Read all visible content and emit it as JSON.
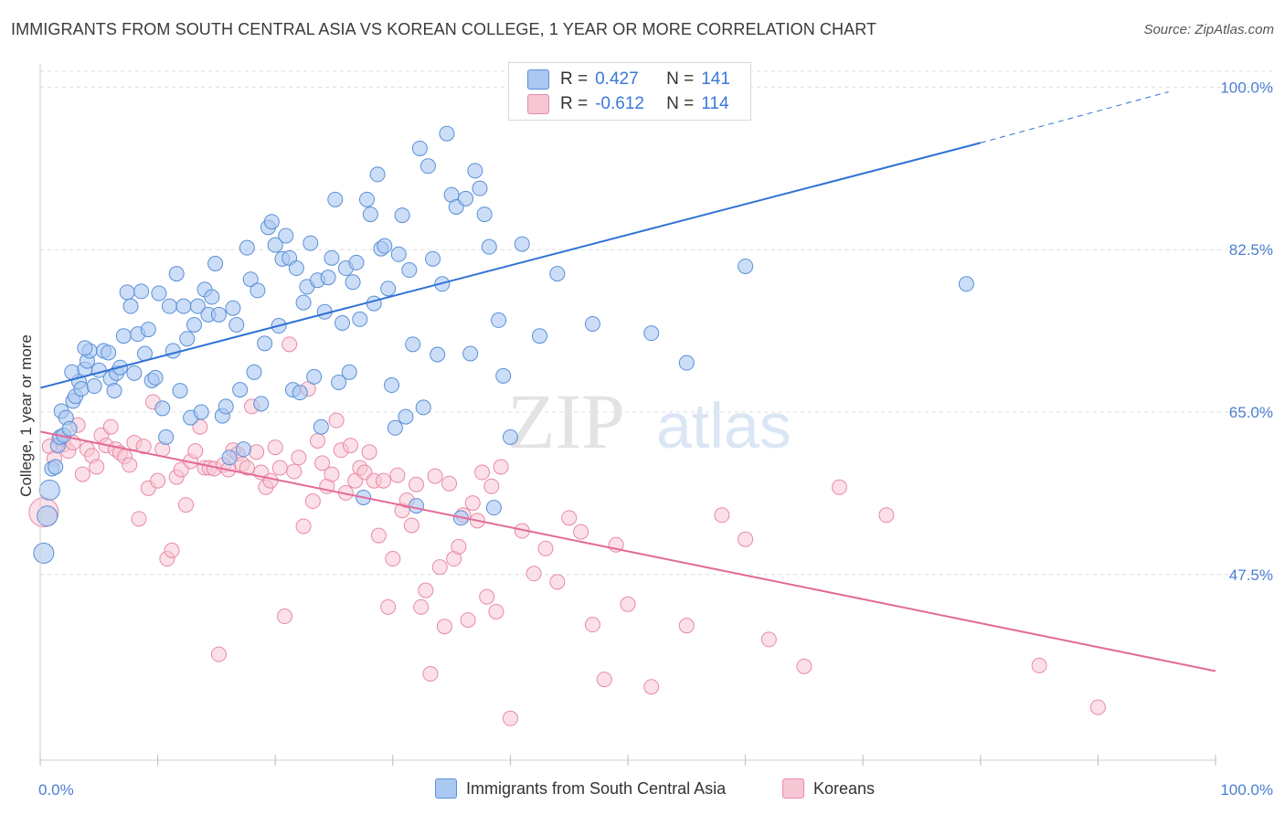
{
  "header": {
    "title": "IMMIGRANTS FROM SOUTH CENTRAL ASIA VS KOREAN COLLEGE, 1 YEAR OR MORE CORRELATION CHART",
    "source": "Source: ZipAtlas.com"
  },
  "watermark": {
    "zip": "ZIP",
    "atlas": "atlas"
  },
  "legend": {
    "rows": [
      {
        "r_label": "R =",
        "r_value": "0.427",
        "n_label": "N =",
        "n_value": "141"
      },
      {
        "r_label": "R =",
        "r_value": "-0.612",
        "n_label": "N =",
        "n_value": "114"
      }
    ]
  },
  "bottom_legend": [
    "Immigrants from South Central Asia",
    "Koreans"
  ],
  "colors": {
    "blue_fill": "#aac8f2",
    "blue_stroke": "#5b8fd6",
    "blue_line": "#2f72d4",
    "pink_fill": "#f7c6d4",
    "pink_stroke": "#e88aa8",
    "pink_line": "#e36a98",
    "grid": "#dddddd",
    "tick_text": "#4a7fd0"
  },
  "chart_data": {
    "type": "scatter",
    "title": "IMMIGRANTS FROM SOUTH CENTRAL ASIA VS KOREAN COLLEGE, 1 YEAR OR MORE CORRELATION CHART",
    "xlabel": "",
    "ylabel": "College, 1 year or more",
    "xlim": [
      0,
      100
    ],
    "ylim": [
      27.5,
      102.5
    ],
    "x_tick_labels": [
      "0.0%",
      "100.0%"
    ],
    "y_ticks": [
      47.5,
      65.0,
      82.5,
      100.0
    ],
    "y_tick_labels": [
      "47.5%",
      "65.0%",
      "82.5%",
      "100.0%"
    ],
    "grid": true,
    "legend_position": "top-center",
    "series": [
      {
        "name": "Immigrants from South Central Asia",
        "color": "#aac8f2",
        "r": 0.427,
        "n": 141,
        "trendline": {
          "x": [
            0,
            80
          ],
          "y": [
            67.6,
            94.0
          ],
          "dashed_to": [
            96,
            99.5
          ]
        },
        "points": [
          [
            0.3,
            49.8
          ],
          [
            0.6,
            53.8
          ],
          [
            0.8,
            56.6
          ],
          [
            1.0,
            58.9
          ],
          [
            1.3,
            59.1
          ],
          [
            1.5,
            61.4
          ],
          [
            1.7,
            62.3
          ],
          [
            2.0,
            62.5
          ],
          [
            1.8,
            65.1
          ],
          [
            2.2,
            64.4
          ],
          [
            2.5,
            63.2
          ],
          [
            2.8,
            66.2
          ],
          [
            3.0,
            66.7
          ],
          [
            3.3,
            68.3
          ],
          [
            2.7,
            69.3
          ],
          [
            3.5,
            67.5
          ],
          [
            3.8,
            69.6
          ],
          [
            4.0,
            70.5
          ],
          [
            4.2,
            71.6
          ],
          [
            3.8,
            71.9
          ],
          [
            4.6,
            67.8
          ],
          [
            5.0,
            69.5
          ],
          [
            5.4,
            71.6
          ],
          [
            5.8,
            71.4
          ],
          [
            6.0,
            68.6
          ],
          [
            6.3,
            67.3
          ],
          [
            6.5,
            69.2
          ],
          [
            6.8,
            69.8
          ],
          [
            7.1,
            73.2
          ],
          [
            7.4,
            77.9
          ],
          [
            7.7,
            76.4
          ],
          [
            8.0,
            69.2
          ],
          [
            8.3,
            73.4
          ],
          [
            8.6,
            78.0
          ],
          [
            8.9,
            71.3
          ],
          [
            9.2,
            73.9
          ],
          [
            9.5,
            68.4
          ],
          [
            9.8,
            68.7
          ],
          [
            10.1,
            77.8
          ],
          [
            10.4,
            65.4
          ],
          [
            10.7,
            62.3
          ],
          [
            11.0,
            76.4
          ],
          [
            11.3,
            71.6
          ],
          [
            11.6,
            79.9
          ],
          [
            11.9,
            67.3
          ],
          [
            12.2,
            76.4
          ],
          [
            12.5,
            72.9
          ],
          [
            12.8,
            64.4
          ],
          [
            13.1,
            74.4
          ],
          [
            13.4,
            76.4
          ],
          [
            13.7,
            65.0
          ],
          [
            14.0,
            78.2
          ],
          [
            14.3,
            75.5
          ],
          [
            14.6,
            77.4
          ],
          [
            14.9,
            81.0
          ],
          [
            15.2,
            75.5
          ],
          [
            15.5,
            64.6
          ],
          [
            15.8,
            65.6
          ],
          [
            16.1,
            60.1
          ],
          [
            16.4,
            76.2
          ],
          [
            16.7,
            74.4
          ],
          [
            17.0,
            67.4
          ],
          [
            17.3,
            61.0
          ],
          [
            17.6,
            82.7
          ],
          [
            17.9,
            79.3
          ],
          [
            18.2,
            69.3
          ],
          [
            18.5,
            78.1
          ],
          [
            18.8,
            65.9
          ],
          [
            19.1,
            72.4
          ],
          [
            19.4,
            84.9
          ],
          [
            19.7,
            85.5
          ],
          [
            20.0,
            83.0
          ],
          [
            20.3,
            74.3
          ],
          [
            20.6,
            81.5
          ],
          [
            20.9,
            84.0
          ],
          [
            21.2,
            81.6
          ],
          [
            21.5,
            67.4
          ],
          [
            21.8,
            80.5
          ],
          [
            22.1,
            67.1
          ],
          [
            22.4,
            76.8
          ],
          [
            22.7,
            78.5
          ],
          [
            23.0,
            83.2
          ],
          [
            23.3,
            68.8
          ],
          [
            23.6,
            79.2
          ],
          [
            23.9,
            63.4
          ],
          [
            24.2,
            75.8
          ],
          [
            24.5,
            79.5
          ],
          [
            24.8,
            81.6
          ],
          [
            25.1,
            87.9
          ],
          [
            25.4,
            68.2
          ],
          [
            25.7,
            74.6
          ],
          [
            26.0,
            80.5
          ],
          [
            26.3,
            69.3
          ],
          [
            26.6,
            79.0
          ],
          [
            26.9,
            81.1
          ],
          [
            27.2,
            75.0
          ],
          [
            27.5,
            55.8
          ],
          [
            27.8,
            87.9
          ],
          [
            28.1,
            86.3
          ],
          [
            28.4,
            76.7
          ],
          [
            28.7,
            90.6
          ],
          [
            29.0,
            82.6
          ],
          [
            29.3,
            82.9
          ],
          [
            29.6,
            78.3
          ],
          [
            29.9,
            67.9
          ],
          [
            30.2,
            63.3
          ],
          [
            30.5,
            82.0
          ],
          [
            30.8,
            86.2
          ],
          [
            31.1,
            64.5
          ],
          [
            31.4,
            80.3
          ],
          [
            31.7,
            72.3
          ],
          [
            32.0,
            54.9
          ],
          [
            32.3,
            93.4
          ],
          [
            32.6,
            65.5
          ],
          [
            33.0,
            91.5
          ],
          [
            33.4,
            81.5
          ],
          [
            33.8,
            71.2
          ],
          [
            34.2,
            78.8
          ],
          [
            34.6,
            95.0
          ],
          [
            35.0,
            88.4
          ],
          [
            35.4,
            87.1
          ],
          [
            35.8,
            53.6
          ],
          [
            36.2,
            88.0
          ],
          [
            36.6,
            71.3
          ],
          [
            37.0,
            91.0
          ],
          [
            37.4,
            89.1
          ],
          [
            37.8,
            86.3
          ],
          [
            38.2,
            82.8
          ],
          [
            38.6,
            54.7
          ],
          [
            39.0,
            74.9
          ],
          [
            39.4,
            68.9
          ],
          [
            40.0,
            62.3
          ],
          [
            41.0,
            83.1
          ],
          [
            42.5,
            73.2
          ],
          [
            44.0,
            79.9
          ],
          [
            47.0,
            74.5
          ],
          [
            52.0,
            73.5
          ],
          [
            55.0,
            70.3
          ],
          [
            60.0,
            80.7
          ],
          [
            78.8,
            78.8
          ]
        ]
      },
      {
        "name": "Koreans",
        "color": "#f7c6d4",
        "r": -0.612,
        "n": 114,
        "trendline": {
          "x": [
            0,
            100
          ],
          "y": [
            62.9,
            37.1
          ]
        },
        "points": [
          [
            0.3,
            54.2
          ],
          [
            0.8,
            61.3
          ],
          [
            1.2,
            60.0
          ],
          [
            1.6,
            62.1
          ],
          [
            2.0,
            61.5
          ],
          [
            2.4,
            60.8
          ],
          [
            2.8,
            61.7
          ],
          [
            3.2,
            63.6
          ],
          [
            3.6,
            58.3
          ],
          [
            4.0,
            61.0
          ],
          [
            4.4,
            60.3
          ],
          [
            4.8,
            59.1
          ],
          [
            5.2,
            62.5
          ],
          [
            5.6,
            61.4
          ],
          [
            6.0,
            63.4
          ],
          [
            6.4,
            61.0
          ],
          [
            6.8,
            60.6
          ],
          [
            7.2,
            60.2
          ],
          [
            7.6,
            59.3
          ],
          [
            8.0,
            61.7
          ],
          [
            8.4,
            53.5
          ],
          [
            8.8,
            61.3
          ],
          [
            9.2,
            56.8
          ],
          [
            9.6,
            66.1
          ],
          [
            10.0,
            57.6
          ],
          [
            10.4,
            61.0
          ],
          [
            10.8,
            49.2
          ],
          [
            11.2,
            50.1
          ],
          [
            11.6,
            58.0
          ],
          [
            12.0,
            58.8
          ],
          [
            12.4,
            55.0
          ],
          [
            12.8,
            59.7
          ],
          [
            13.2,
            60.8
          ],
          [
            13.6,
            63.4
          ],
          [
            14.0,
            59.0
          ],
          [
            14.4,
            59.0
          ],
          [
            14.8,
            58.9
          ],
          [
            15.2,
            38.9
          ],
          [
            15.6,
            59.3
          ],
          [
            16.0,
            58.8
          ],
          [
            16.4,
            60.9
          ],
          [
            16.8,
            60.5
          ],
          [
            17.2,
            59.4
          ],
          [
            17.6,
            59.0
          ],
          [
            18.0,
            65.6
          ],
          [
            18.4,
            60.7
          ],
          [
            18.8,
            58.5
          ],
          [
            19.2,
            56.9
          ],
          [
            19.6,
            57.6
          ],
          [
            20.0,
            61.2
          ],
          [
            20.4,
            59.0
          ],
          [
            20.8,
            43.0
          ],
          [
            21.2,
            72.3
          ],
          [
            21.6,
            58.6
          ],
          [
            22.0,
            60.1
          ],
          [
            22.4,
            52.7
          ],
          [
            22.8,
            67.5
          ],
          [
            23.2,
            55.4
          ],
          [
            23.6,
            61.9
          ],
          [
            24.0,
            59.5
          ],
          [
            24.4,
            57.0
          ],
          [
            24.8,
            58.3
          ],
          [
            25.2,
            64.1
          ],
          [
            25.6,
            60.9
          ],
          [
            26.0,
            56.3
          ],
          [
            26.4,
            61.4
          ],
          [
            26.8,
            57.6
          ],
          [
            27.2,
            59.0
          ],
          [
            27.6,
            58.5
          ],
          [
            28.0,
            60.7
          ],
          [
            28.4,
            57.6
          ],
          [
            28.8,
            51.7
          ],
          [
            29.2,
            57.6
          ],
          [
            29.6,
            44.0
          ],
          [
            30.0,
            49.2
          ],
          [
            30.4,
            58.2
          ],
          [
            30.8,
            54.4
          ],
          [
            31.2,
            55.5
          ],
          [
            31.6,
            52.8
          ],
          [
            32.0,
            57.2
          ],
          [
            32.4,
            44.0
          ],
          [
            32.8,
            45.8
          ],
          [
            33.2,
            36.8
          ],
          [
            33.6,
            58.1
          ],
          [
            34.0,
            48.3
          ],
          [
            34.4,
            41.9
          ],
          [
            34.8,
            57.3
          ],
          [
            35.2,
            49.2
          ],
          [
            35.6,
            50.5
          ],
          [
            36.0,
            53.9
          ],
          [
            36.4,
            42.6
          ],
          [
            36.8,
            55.2
          ],
          [
            37.2,
            53.3
          ],
          [
            37.6,
            58.5
          ],
          [
            38.0,
            45.1
          ],
          [
            38.4,
            57.0
          ],
          [
            38.8,
            43.5
          ],
          [
            39.2,
            59.1
          ],
          [
            40.0,
            32.0
          ],
          [
            41.0,
            52.2
          ],
          [
            42.0,
            47.6
          ],
          [
            43.0,
            50.3
          ],
          [
            44.0,
            46.7
          ],
          [
            45.0,
            53.6
          ],
          [
            46.0,
            52.1
          ],
          [
            47.0,
            42.1
          ],
          [
            48.0,
            36.2
          ],
          [
            49.0,
            50.7
          ],
          [
            50.0,
            44.3
          ],
          [
            52.0,
            35.4
          ],
          [
            55.0,
            42.0
          ],
          [
            58.0,
            53.9
          ],
          [
            60.0,
            51.3
          ],
          [
            62.0,
            40.5
          ],
          [
            65.0,
            37.6
          ],
          [
            68.0,
            56.9
          ],
          [
            72.0,
            53.9
          ],
          [
            85.0,
            37.7
          ],
          [
            90.0,
            33.2
          ]
        ]
      }
    ]
  }
}
